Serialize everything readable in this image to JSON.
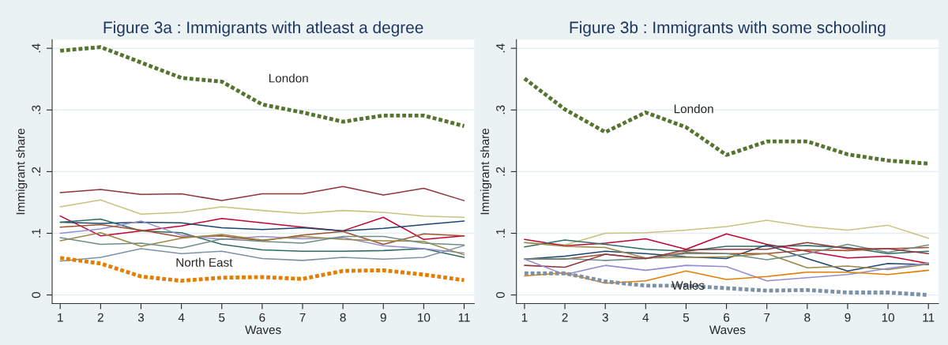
{
  "chart_data": [
    {
      "type": "line",
      "title": "Figure 3a : Immigrants with atleast a degree",
      "xlabel": "Waves",
      "ylabel": "Immigrant share",
      "x": [
        1,
        2,
        3,
        4,
        5,
        6,
        7,
        8,
        9,
        10,
        11
      ],
      "xlim": [
        0.8,
        11.25
      ],
      "xticks": [
        1,
        2,
        3,
        4,
        5,
        6,
        7,
        8,
        9,
        10,
        11
      ],
      "ylim": [
        -0.014,
        0.414
      ],
      "yticks": [
        0,
        {
          "value": 0.1,
          "label": ".1"
        },
        {
          "value": 0.2,
          "label": ".2"
        },
        {
          "value": 0.3,
          "label": ".3"
        },
        {
          "value": 0.4,
          "label": ".4"
        }
      ],
      "grid": "y",
      "series": [
        {
          "color": "#90353b",
          "line_style": "solid",
          "values": [
            0.166,
            0.171,
            0.163,
            0.164,
            0.153,
            0.164,
            0.164,
            0.176,
            0.162,
            0.173,
            0.153
          ]
        },
        {
          "color": "#cac27e",
          "line_style": "solid",
          "values": [
            0.143,
            0.154,
            0.131,
            0.134,
            0.143,
            0.137,
            0.132,
            0.137,
            0.134,
            0.128,
            0.126
          ]
        },
        {
          "color": "#c10534",
          "line_style": "solid",
          "values": [
            0.128,
            0.096,
            0.104,
            0.112,
            0.124,
            0.117,
            0.11,
            0.104,
            0.126,
            0.09,
            0.096
          ]
        },
        {
          "color": "#1a476f",
          "line_style": "solid",
          "values": [
            0.118,
            0.116,
            0.118,
            0.117,
            0.109,
            0.106,
            0.109,
            0.104,
            0.108,
            0.114,
            0.12
          ]
        },
        {
          "color": "#2d6d66",
          "line_style": "solid",
          "values": [
            0.118,
            0.123,
            0.104,
            0.101,
            0.082,
            0.073,
            0.071,
            0.071,
            0.072,
            0.075,
            0.061
          ]
        },
        {
          "color": "#938dd2",
          "line_style": "solid",
          "values": [
            0.1,
            0.107,
            0.12,
            0.097,
            0.09,
            0.095,
            0.091,
            0.093,
            0.08,
            0.075,
            0.068
          ]
        },
        {
          "color": "#a0522d",
          "line_style": "solid",
          "values": [
            0.11,
            0.114,
            0.105,
            0.094,
            0.096,
            0.088,
            0.097,
            0.103,
            0.082,
            0.099,
            0.096
          ]
        },
        {
          "color": "#9c8847",
          "line_style": "solid",
          "values": [
            0.088,
            0.101,
            0.079,
            0.092,
            0.098,
            0.089,
            0.095,
            0.09,
            0.088,
            0.087,
            0.065
          ]
        },
        {
          "color": "#6e8e84",
          "line_style": "solid",
          "values": [
            0.093,
            0.082,
            0.084,
            0.076,
            0.091,
            0.087,
            0.084,
            0.095,
            0.095,
            0.084,
            0.081
          ]
        },
        {
          "color": "#7b92a8",
          "line_style": "solid",
          "values": [
            0.055,
            0.061,
            0.075,
            0.067,
            0.071,
            0.059,
            0.056,
            0.061,
            0.058,
            0.061,
            0.08
          ]
        },
        {
          "color": "#55752f",
          "line_style": "dotted",
          "values": [
            0.396,
            0.402,
            0.377,
            0.352,
            0.346,
            0.309,
            0.296,
            0.281,
            0.291,
            0.291,
            0.274
          ]
        },
        {
          "color": "#e37e00",
          "line_style": "dotted",
          "values": [
            0.06,
            0.051,
            0.03,
            0.023,
            0.028,
            0.029,
            0.026,
            0.039,
            0.04,
            0.033,
            0.024
          ]
        }
      ],
      "annotations": [
        "London",
        "North East"
      ]
    },
    {
      "type": "line",
      "title": "Figure 3b : Immigrants with some schooling",
      "xlabel": "Waves",
      "ylabel": "Immigrant share",
      "x": [
        1,
        2,
        3,
        4,
        5,
        6,
        7,
        8,
        9,
        10,
        11
      ],
      "xlim": [
        0.8,
        11.25
      ],
      "xticks": [
        1,
        2,
        3,
        4,
        5,
        6,
        7,
        8,
        9,
        10,
        11
      ],
      "ylim": [
        -0.014,
        0.414
      ],
      "yticks": [
        0,
        {
          "value": 0.1,
          "label": ".1"
        },
        {
          "value": 0.2,
          "label": ".2"
        },
        {
          "value": 0.3,
          "label": ".3"
        },
        {
          "value": 0.4,
          "label": ".4"
        }
      ],
      "grid": "y",
      "series": [
        {
          "color": "#cac27e",
          "line_style": "solid",
          "values": [
            0.085,
            0.081,
            0.1,
            0.101,
            0.105,
            0.111,
            0.121,
            0.111,
            0.105,
            0.113,
            0.092
          ]
        },
        {
          "color": "#c10534",
          "line_style": "solid",
          "values": [
            0.09,
            0.08,
            0.084,
            0.091,
            0.074,
            0.099,
            0.082,
            0.071,
            0.06,
            0.063,
            0.051
          ]
        },
        {
          "color": "#2d6d66",
          "line_style": "solid",
          "values": [
            0.078,
            0.089,
            0.082,
            0.074,
            0.071,
            0.079,
            0.079,
            0.08,
            0.077,
            0.067,
            0.071
          ]
        },
        {
          "color": "#1a476f",
          "line_style": "solid",
          "values": [
            0.058,
            0.063,
            0.071,
            0.067,
            0.062,
            0.059,
            0.081,
            0.059,
            0.039,
            0.051,
            0.049
          ]
        },
        {
          "color": "#a0522d",
          "line_style": "solid",
          "values": [
            0.058,
            0.058,
            0.066,
            0.059,
            0.069,
            0.067,
            0.067,
            0.073,
            0.072,
            0.075,
            0.077
          ]
        },
        {
          "color": "#9c8847",
          "line_style": "solid",
          "values": [
            0.085,
            0.079,
            0.077,
            0.06,
            0.061,
            0.062,
            0.067,
            0.044,
            0.047,
            0.041,
            0.05
          ]
        },
        {
          "color": "#6e8e84",
          "line_style": "solid",
          "values": [
            0.058,
            0.059,
            0.056,
            0.059,
            0.067,
            0.067,
            0.057,
            0.067,
            0.082,
            0.069,
            0.081
          ]
        },
        {
          "color": "#90353b",
          "line_style": "solid",
          "values": [
            0.048,
            0.045,
            0.066,
            0.059,
            0.073,
            0.074,
            0.074,
            0.085,
            0.075,
            0.075,
            0.067
          ]
        },
        {
          "color": "#938dd2",
          "line_style": "solid",
          "values": [
            0.058,
            0.033,
            0.048,
            0.04,
            0.048,
            0.046,
            0.023,
            0.028,
            0.033,
            0.043,
            0.052
          ]
        },
        {
          "color": "#e37e00",
          "line_style": "solid",
          "values": [
            0.031,
            0.036,
            0.019,
            0.023,
            0.039,
            0.025,
            0.03,
            0.037,
            0.037,
            0.033,
            0.04
          ]
        },
        {
          "color": "#55752f",
          "line_style": "dotted",
          "values": [
            0.351,
            0.301,
            0.264,
            0.296,
            0.272,
            0.227,
            0.249,
            0.249,
            0.228,
            0.218,
            0.213
          ]
        },
        {
          "color": "#7b92a8",
          "line_style": "dotted",
          "values": [
            0.035,
            0.035,
            0.022,
            0.015,
            0.015,
            0.011,
            0.007,
            0.008,
            0.004,
            0.004,
            0.0
          ]
        }
      ],
      "annotations": [
        "London",
        "Wales"
      ]
    }
  ]
}
